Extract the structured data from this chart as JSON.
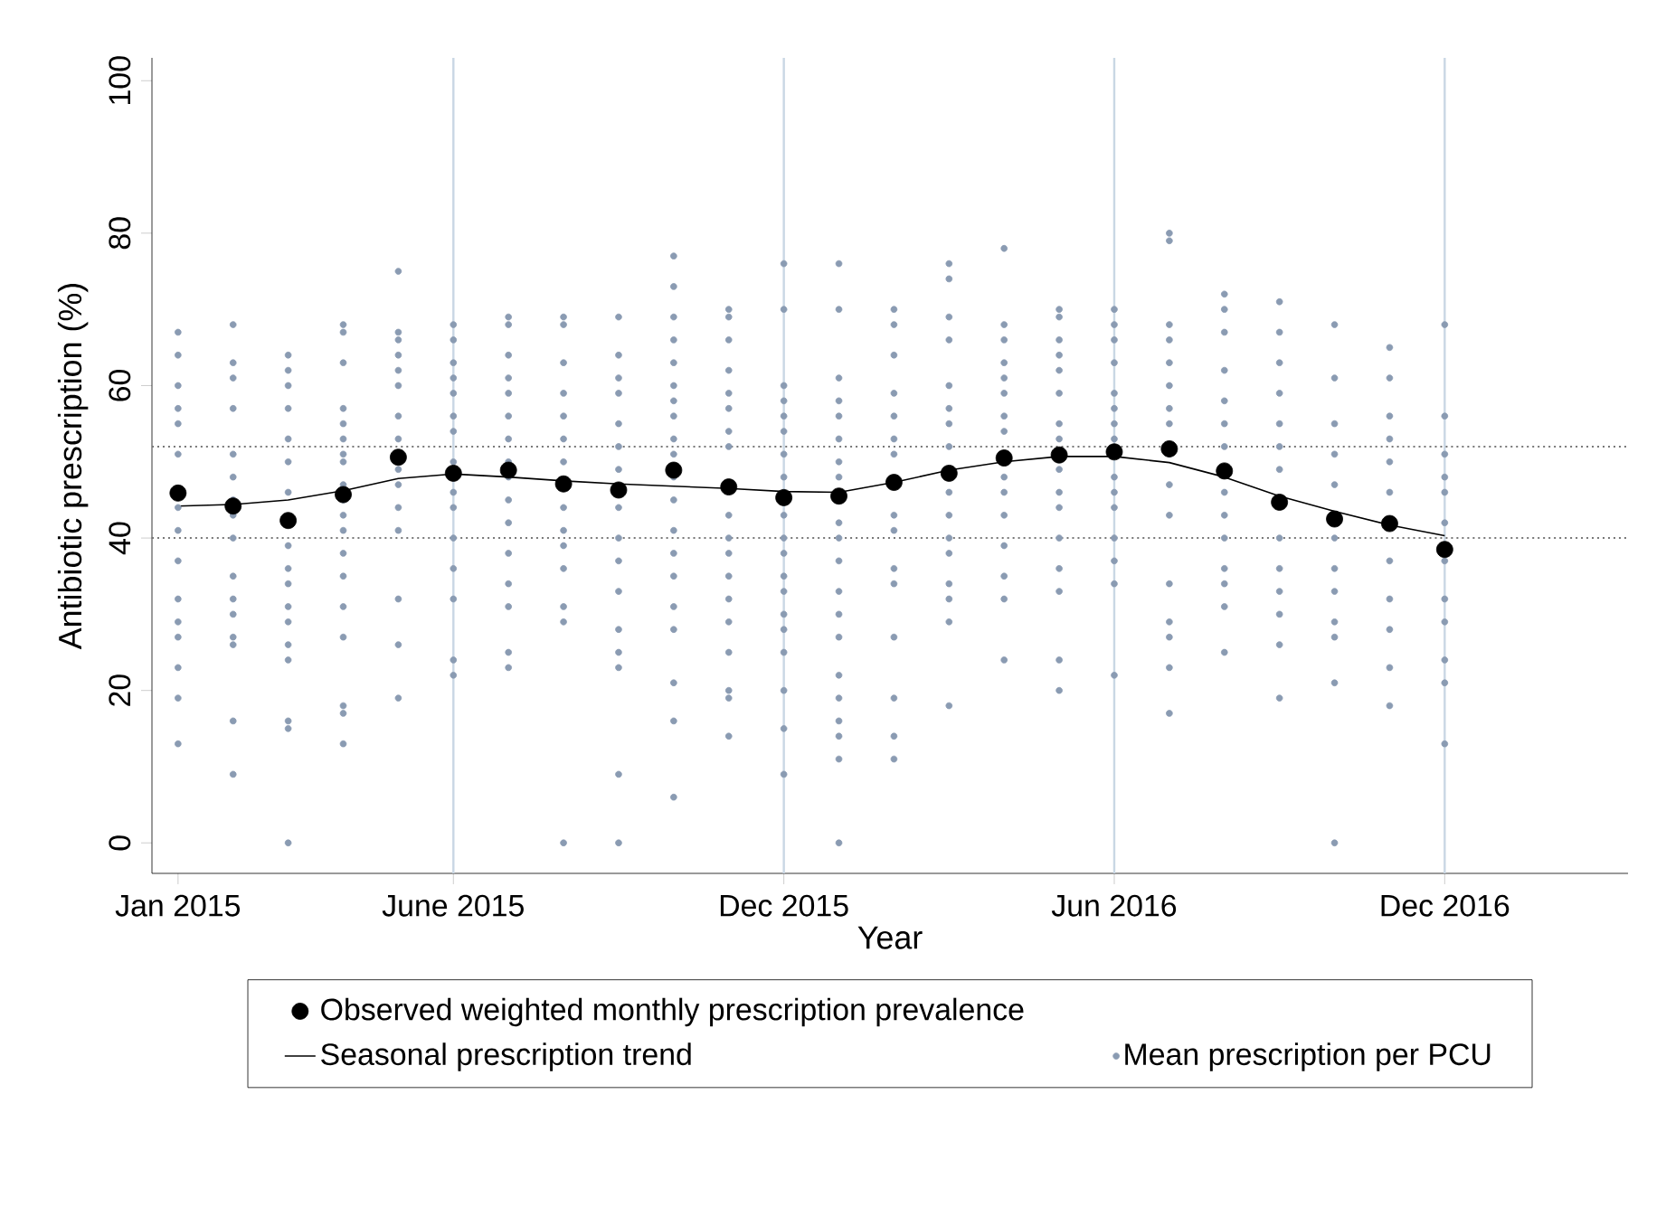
{
  "chart_data": {
    "type": "scatter",
    "xlabel": "Year",
    "ylabel": "Antibiotic prescription (%)",
    "xlim": [
      "2014-12-17",
      "2017-03-11"
    ],
    "ylim": [
      -4,
      103
    ],
    "xticks": [
      {
        "value": "2015-01",
        "label": "Jan 2015"
      },
      {
        "value": "2015-06",
        "label": "June 2015"
      },
      {
        "value": "2015-12",
        "label": "Dec 2015"
      },
      {
        "value": "2016-06",
        "label": "Jun 2016"
      },
      {
        "value": "2016-12",
        "label": "Dec 2016"
      }
    ],
    "yticks": [
      0,
      20,
      40,
      60,
      80,
      100
    ],
    "legend": "bottom",
    "ref_lines": [
      {
        "axis": "x",
        "value": "2015-06",
        "color": "#c9d7e4"
      },
      {
        "axis": "x",
        "value": "2015-12",
        "color": "#c9d7e4"
      },
      {
        "axis": "x",
        "value": "2016-06",
        "color": "#c9d7e4"
      },
      {
        "axis": "x",
        "value": "2016-12",
        "color": "#c9d7e4"
      },
      {
        "axis": "y",
        "value": 52,
        "color": "#777777",
        "line_style": "dotted"
      },
      {
        "axis": "y",
        "value": 40,
        "color": "#777777",
        "line_style": "dotted"
      }
    ],
    "series": [
      {
        "name": "Observed weighted monthly prescription prevalence",
        "marker": "circle",
        "color": "#000000",
        "x": [
          "2015-01",
          "2015-02",
          "2015-03",
          "2015-04",
          "2015-05",
          "2015-06",
          "2015-07",
          "2015-08",
          "2015-09",
          "2015-10",
          "2015-11",
          "2015-12",
          "2016-01",
          "2016-02",
          "2016-03",
          "2016-04",
          "2016-05",
          "2016-06",
          "2016-07",
          "2016-08",
          "2016-09",
          "2016-10",
          "2016-11",
          "2016-12"
        ],
        "values": [
          45.9,
          44.2,
          42.3,
          45.7,
          50.6,
          48.5,
          48.9,
          47.1,
          46.3,
          48.9,
          46.7,
          45.3,
          45.5,
          47.3,
          48.5,
          50.5,
          50.9,
          51.3,
          51.7,
          48.8,
          44.7,
          42.5,
          41.9,
          38.5
        ]
      },
      {
        "name": "Seasonal prescription trend",
        "type": "line",
        "marker": "none",
        "color": "#000000",
        "x": [
          "2015-01",
          "2015-02",
          "2015-03",
          "2015-04",
          "2015-05",
          "2015-06",
          "2015-07",
          "2015-08",
          "2015-09",
          "2015-10",
          "2015-11",
          "2015-12",
          "2016-01",
          "2016-02",
          "2016-03",
          "2016-04",
          "2016-05",
          "2016-06",
          "2016-07",
          "2016-08",
          "2016-09",
          "2016-10",
          "2016-11",
          "2016-12"
        ],
        "values": [
          44.2,
          44.4,
          45.0,
          46.2,
          47.8,
          48.4,
          48.0,
          47.5,
          47.1,
          46.8,
          46.5,
          46.1,
          46.0,
          47.3,
          48.9,
          50.0,
          50.7,
          50.7,
          49.9,
          48.0,
          45.5,
          43.5,
          41.7,
          40.3
        ]
      },
      {
        "name": "Mean prescription per PCU",
        "marker": "circle",
        "color": "#8a9bb2",
        "x": [
          "2015-01",
          "2015-01",
          "2015-01",
          "2015-01",
          "2015-01",
          "2015-01",
          "2015-01",
          "2015-01",
          "2015-01",
          "2015-01",
          "2015-01",
          "2015-01",
          "2015-01",
          "2015-01",
          "2015-01",
          "2015-02",
          "2015-02",
          "2015-02",
          "2015-02",
          "2015-02",
          "2015-02",
          "2015-02",
          "2015-02",
          "2015-02",
          "2015-02",
          "2015-02",
          "2015-02",
          "2015-02",
          "2015-02",
          "2015-02",
          "2015-02",
          "2015-03",
          "2015-03",
          "2015-03",
          "2015-03",
          "2015-03",
          "2015-03",
          "2015-03",
          "2015-03",
          "2015-03",
          "2015-03",
          "2015-03",
          "2015-03",
          "2015-03",
          "2015-03",
          "2015-03",
          "2015-03",
          "2015-03",
          "2015-04",
          "2015-04",
          "2015-04",
          "2015-04",
          "2015-04",
          "2015-04",
          "2015-04",
          "2015-04",
          "2015-04",
          "2015-04",
          "2015-04",
          "2015-04",
          "2015-04",
          "2015-04",
          "2015-04",
          "2015-04",
          "2015-04",
          "2015-04",
          "2015-04",
          "2015-05",
          "2015-05",
          "2015-05",
          "2015-05",
          "2015-05",
          "2015-05",
          "2015-05",
          "2015-05",
          "2015-05",
          "2015-05",
          "2015-05",
          "2015-05",
          "2015-05",
          "2015-05",
          "2015-05",
          "2015-06",
          "2015-06",
          "2015-06",
          "2015-06",
          "2015-06",
          "2015-06",
          "2015-06",
          "2015-06",
          "2015-06",
          "2015-06",
          "2015-06",
          "2015-06",
          "2015-06",
          "2015-06",
          "2015-06",
          "2015-07",
          "2015-07",
          "2015-07",
          "2015-07",
          "2015-07",
          "2015-07",
          "2015-07",
          "2015-07",
          "2015-07",
          "2015-07",
          "2015-07",
          "2015-07",
          "2015-07",
          "2015-07",
          "2015-07",
          "2015-07",
          "2015-08",
          "2015-08",
          "2015-08",
          "2015-08",
          "2015-08",
          "2015-08",
          "2015-08",
          "2015-08",
          "2015-08",
          "2015-08",
          "2015-08",
          "2015-08",
          "2015-08",
          "2015-08",
          "2015-09",
          "2015-09",
          "2015-09",
          "2015-09",
          "2015-09",
          "2015-09",
          "2015-09",
          "2015-09",
          "2015-09",
          "2015-09",
          "2015-09",
          "2015-09",
          "2015-09",
          "2015-09",
          "2015-09",
          "2015-09",
          "2015-10",
          "2015-10",
          "2015-10",
          "2015-10",
          "2015-10",
          "2015-10",
          "2015-10",
          "2015-10",
          "2015-10",
          "2015-10",
          "2015-10",
          "2015-10",
          "2015-10",
          "2015-10",
          "2015-10",
          "2015-10",
          "2015-10",
          "2015-10",
          "2015-10",
          "2015-10",
          "2015-11",
          "2015-11",
          "2015-11",
          "2015-11",
          "2015-11",
          "2015-11",
          "2015-11",
          "2015-11",
          "2015-11",
          "2015-11",
          "2015-11",
          "2015-11",
          "2015-11",
          "2015-11",
          "2015-11",
          "2015-11",
          "2015-11",
          "2015-11",
          "2015-12",
          "2015-12",
          "2015-12",
          "2015-12",
          "2015-12",
          "2015-12",
          "2015-12",
          "2015-12",
          "2015-12",
          "2015-12",
          "2015-12",
          "2015-12",
          "2015-12",
          "2015-12",
          "2015-12",
          "2015-12",
          "2015-12",
          "2015-12",
          "2015-12",
          "2015-12",
          "2016-01",
          "2016-01",
          "2016-01",
          "2016-01",
          "2016-01",
          "2016-01",
          "2016-01",
          "2016-01",
          "2016-01",
          "2016-01",
          "2016-01",
          "2016-01",
          "2016-01",
          "2016-01",
          "2016-01",
          "2016-01",
          "2016-01",
          "2016-01",
          "2016-01",
          "2016-01",
          "2016-02",
          "2016-02",
          "2016-02",
          "2016-02",
          "2016-02",
          "2016-02",
          "2016-02",
          "2016-02",
          "2016-02",
          "2016-02",
          "2016-02",
          "2016-02",
          "2016-02",
          "2016-02",
          "2016-02",
          "2016-03",
          "2016-03",
          "2016-03",
          "2016-03",
          "2016-03",
          "2016-03",
          "2016-03",
          "2016-03",
          "2016-03",
          "2016-03",
          "2016-03",
          "2016-03",
          "2016-03",
          "2016-03",
          "2016-03",
          "2016-03",
          "2016-04",
          "2016-04",
          "2016-04",
          "2016-04",
          "2016-04",
          "2016-04",
          "2016-04",
          "2016-04",
          "2016-04",
          "2016-04",
          "2016-04",
          "2016-04",
          "2016-04",
          "2016-04",
          "2016-04",
          "2016-05",
          "2016-05",
          "2016-05",
          "2016-05",
          "2016-05",
          "2016-05",
          "2016-05",
          "2016-05",
          "2016-05",
          "2016-05",
          "2016-05",
          "2016-05",
          "2016-05",
          "2016-05",
          "2016-05",
          "2016-05",
          "2016-06",
          "2016-06",
          "2016-06",
          "2016-06",
          "2016-06",
          "2016-06",
          "2016-06",
          "2016-06",
          "2016-06",
          "2016-06",
          "2016-06",
          "2016-06",
          "2016-06",
          "2016-06",
          "2016-06",
          "2016-07",
          "2016-07",
          "2016-07",
          "2016-07",
          "2016-07",
          "2016-07",
          "2016-07",
          "2016-07",
          "2016-07",
          "2016-07",
          "2016-07",
          "2016-07",
          "2016-07",
          "2016-07",
          "2016-07",
          "2016-07",
          "2016-08",
          "2016-08",
          "2016-08",
          "2016-08",
          "2016-08",
          "2016-08",
          "2016-08",
          "2016-08",
          "2016-08",
          "2016-08",
          "2016-08",
          "2016-08",
          "2016-08",
          "2016-08",
          "2016-09",
          "2016-09",
          "2016-09",
          "2016-09",
          "2016-09",
          "2016-09",
          "2016-09",
          "2016-09",
          "2016-09",
          "2016-09",
          "2016-09",
          "2016-09",
          "2016-09",
          "2016-10",
          "2016-10",
          "2016-10",
          "2016-10",
          "2016-10",
          "2016-10",
          "2016-10",
          "2016-10",
          "2016-10",
          "2016-10",
          "2016-10",
          "2016-10",
          "2016-11",
          "2016-11",
          "2016-11",
          "2016-11",
          "2016-11",
          "2016-11",
          "2016-11",
          "2016-11",
          "2016-11",
          "2016-11",
          "2016-11",
          "2016-12",
          "2016-12",
          "2016-12",
          "2016-12",
          "2016-12",
          "2016-12",
          "2016-12",
          "2016-12",
          "2016-12",
          "2016-12",
          "2016-12",
          "2016-12"
        ],
        "values": [
          67,
          64,
          60,
          57,
          55,
          51,
          44,
          41,
          37,
          32,
          29,
          27,
          23,
          19,
          13,
          68,
          63,
          61,
          57,
          51,
          48,
          45,
          43,
          40,
          35,
          32,
          30,
          27,
          26,
          16,
          9,
          64,
          62,
          60,
          57,
          53,
          50,
          46,
          39,
          36,
          34,
          31,
          29,
          26,
          24,
          16,
          15,
          0,
          68,
          67,
          63,
          57,
          55,
          53,
          51,
          50,
          47,
          45,
          43,
          41,
          38,
          35,
          31,
          27,
          18,
          17,
          13,
          75,
          67,
          66,
          64,
          62,
          60,
          56,
          53,
          49,
          47,
          44,
          41,
          32,
          26,
          19,
          68,
          66,
          63,
          61,
          59,
          56,
          54,
          50,
          46,
          44,
          40,
          36,
          32,
          24,
          22,
          69,
          68,
          64,
          61,
          59,
          56,
          53,
          50,
          48,
          45,
          42,
          38,
          34,
          31,
          25,
          23,
          69,
          68,
          63,
          59,
          56,
          53,
          50,
          44,
          41,
          39,
          36,
          31,
          29,
          0,
          69,
          64,
          61,
          59,
          55,
          52,
          49,
          44,
          40,
          37,
          33,
          28,
          25,
          23,
          9,
          0,
          77,
          73,
          69,
          66,
          63,
          60,
          58,
          56,
          53,
          51,
          48,
          45,
          41,
          38,
          35,
          31,
          28,
          21,
          16,
          6,
          70,
          69,
          66,
          62,
          59,
          57,
          54,
          52,
          43,
          40,
          38,
          35,
          32,
          29,
          25,
          20,
          19,
          14,
          76,
          70,
          60,
          58,
          56,
          54,
          51,
          48,
          46,
          43,
          40,
          38,
          35,
          33,
          30,
          28,
          25,
          20,
          15,
          9,
          76,
          70,
          61,
          58,
          56,
          53,
          50,
          48,
          42,
          40,
          37,
          33,
          30,
          27,
          22,
          19,
          16,
          14,
          11,
          0,
          70,
          68,
          64,
          59,
          56,
          53,
          51,
          43,
          41,
          36,
          34,
          27,
          19,
          14,
          11,
          76,
          74,
          69,
          66,
          60,
          57,
          55,
          52,
          46,
          43,
          40,
          38,
          34,
          32,
          29,
          18,
          78,
          68,
          66,
          63,
          61,
          59,
          56,
          54,
          48,
          46,
          43,
          39,
          35,
          32,
          24,
          70,
          69,
          66,
          64,
          62,
          59,
          55,
          53,
          49,
          46,
          44,
          40,
          36,
          33,
          24,
          20,
          70,
          68,
          66,
          63,
          59,
          57,
          55,
          53,
          48,
          46,
          44,
          40,
          37,
          34,
          22,
          80,
          79,
          68,
          66,
          63,
          60,
          57,
          55,
          51,
          47,
          43,
          34,
          29,
          27,
          23,
          17,
          72,
          70,
          67,
          62,
          58,
          55,
          52,
          46,
          43,
          40,
          36,
          34,
          31,
          25,
          71,
          67,
          63,
          59,
          55,
          52,
          49,
          40,
          36,
          33,
          30,
          26,
          19,
          68,
          61,
          55,
          51,
          47,
          40,
          36,
          33,
          29,
          27,
          21,
          0,
          65,
          61,
          56,
          53,
          50,
          46,
          37,
          32,
          28,
          23,
          18,
          68,
          56,
          51,
          48,
          46,
          42,
          37,
          32,
          29,
          24,
          21,
          13
        ]
      }
    ]
  }
}
